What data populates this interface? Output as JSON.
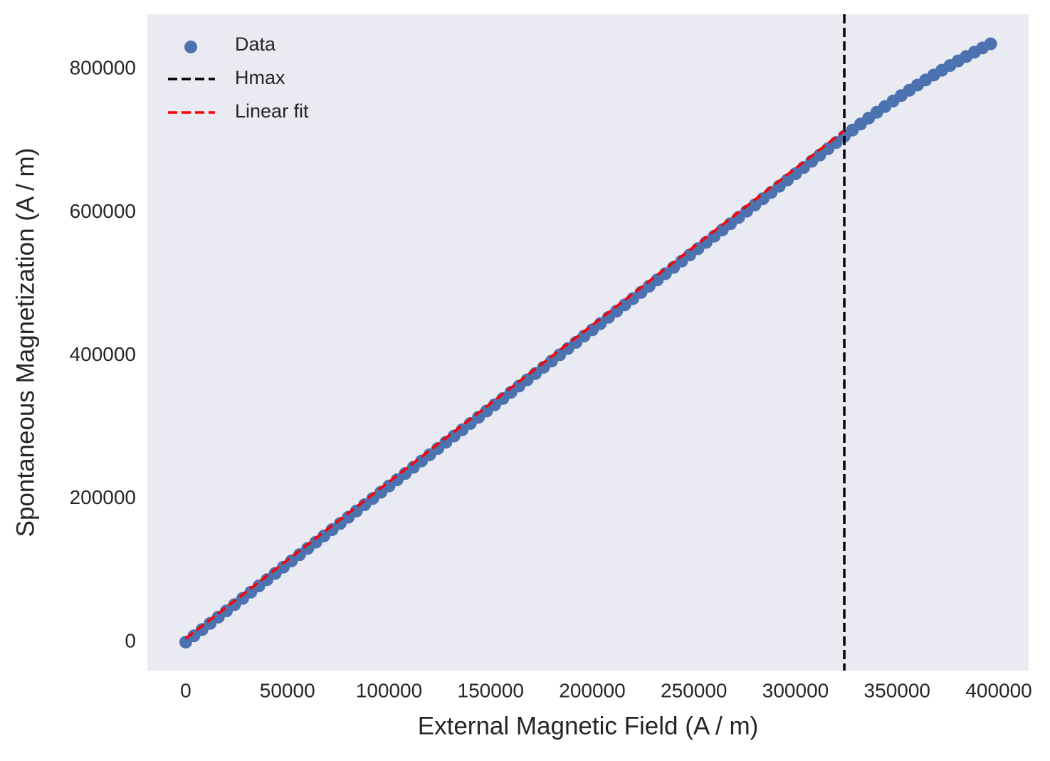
{
  "chart_data": {
    "type": "scatter",
    "xlabel": "External Magnetic Field (A / m)",
    "ylabel": "Spontaneous Magnetization (A / m)",
    "xlim": [
      -18900,
      414700
    ],
    "ylim": [
      -39800,
      876700
    ],
    "xticks": [
      0,
      50000,
      100000,
      150000,
      200000,
      250000,
      300000,
      350000,
      400000
    ],
    "yticks": [
      0,
      200000,
      400000,
      600000,
      800000
    ],
    "grid": false,
    "legend": "upper left",
    "series": [
      {
        "name": "Data",
        "color": "#4c72b0",
        "x": [
          0,
          4000,
          8000,
          12000,
          16000,
          20000,
          24000,
          28000,
          32000,
          36000,
          40000,
          44000,
          48000,
          52000,
          56000,
          60000,
          64000,
          68000,
          72000,
          76000,
          80000,
          84000,
          88000,
          92000,
          96000,
          100000,
          104000,
          108000,
          112000,
          116000,
          120000,
          124000,
          128000,
          132000,
          136000,
          140000,
          144000,
          148000,
          152000,
          156000,
          160000,
          164000,
          168000,
          172000,
          176000,
          180000,
          184000,
          188000,
          192000,
          196000,
          200000,
          204000,
          208000,
          212000,
          216000,
          220000,
          224000,
          228000,
          232000,
          236000,
          240000,
          244000,
          248000,
          252000,
          256000,
          260000,
          264000,
          268000,
          272000,
          276000,
          280000,
          284000,
          288000,
          292000,
          296000,
          300000,
          304000,
          308000,
          312000,
          316000,
          320000,
          324000,
          328000,
          332000,
          336000,
          340000,
          344000,
          348000,
          352000,
          356000,
          360000,
          364000,
          368000,
          372000,
          376000,
          380000,
          384000,
          388000,
          392000,
          396000
        ],
        "values": [
          0,
          8720,
          17440,
          26160,
          34880,
          43600,
          52320,
          61040,
          69760,
          78480,
          87200,
          95920,
          104640,
          113360,
          122080,
          130800,
          139520,
          148240,
          156960,
          165680,
          174400,
          183120,
          191840,
          200560,
          209280,
          218000,
          226720,
          235440,
          244160,
          252880,
          261600,
          270320,
          279040,
          287760,
          296480,
          305200,
          313920,
          322640,
          331360,
          340080,
          348800,
          357520,
          366240,
          374960,
          383680,
          392400,
          401120,
          409840,
          418560,
          427280,
          436000,
          444720,
          453440,
          462160,
          470880,
          479600,
          488320,
          497040,
          505760,
          514480,
          523200,
          531920,
          540640,
          549360,
          558080,
          566800,
          575520,
          584240,
          592960,
          601680,
          610400,
          619120,
          627840,
          636560,
          645280,
          654000,
          662720,
          671440,
          680160,
          688880,
          697600,
          706320,
          714950,
          723415,
          731704,
          739820,
          747764,
          755535,
          763134,
          770561,
          777815,
          784896,
          791805,
          798541,
          805105,
          811497,
          817716,
          823763,
          829637,
          835338
        ]
      },
      {
        "name": "Linear fit",
        "color": "#ff0000",
        "x": [
          0,
          324000
        ],
        "values": [
          5000,
          714000
        ]
      }
    ],
    "vlines": [
      {
        "name": "Hmax",
        "color": "#000000",
        "x": 324000
      }
    ]
  }
}
